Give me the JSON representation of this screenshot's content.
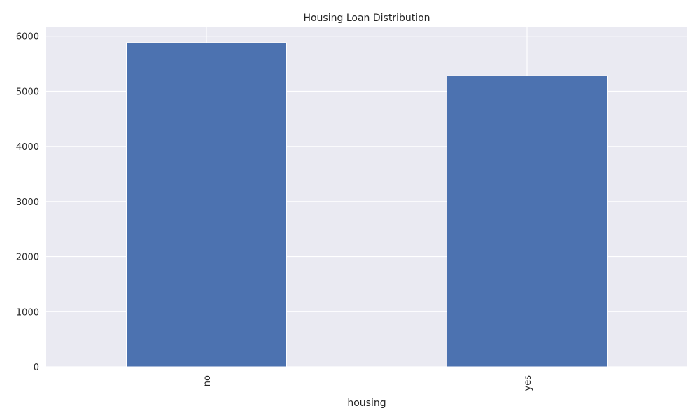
{
  "chart_data": {
    "type": "bar",
    "title": "Housing Loan Distribution",
    "xlabel": "housing",
    "ylabel": "",
    "categories": [
      "no",
      "yes"
    ],
    "values": [
      5881,
      5281
    ],
    "ylim": [
      0,
      6174
    ],
    "yticks": [
      0,
      1000,
      2000,
      3000,
      4000,
      5000,
      6000
    ],
    "ytick_labels": [
      "0",
      "1000",
      "2000",
      "3000",
      "4000",
      "5000",
      "6000"
    ],
    "grid": true,
    "legend": false,
    "colors": {
      "bar": "#4c72b0",
      "background": "#eaeaf2",
      "grid": "#ffffff",
      "text": "#262626"
    }
  }
}
